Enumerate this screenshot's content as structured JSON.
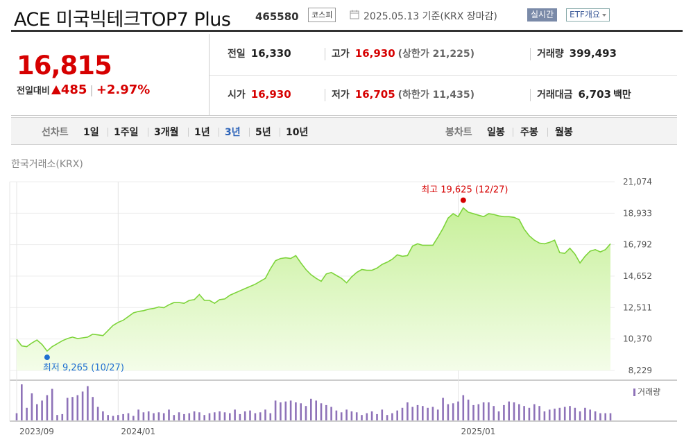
{
  "header": {
    "name": "ACE 미국빅테크TOP7 Plus",
    "code": "465580",
    "market": "코스피",
    "date_text": "2025.05.13 기준(KRX 장마감)",
    "realtime": "실시간",
    "etf_info": "ETF개요"
  },
  "price": {
    "current": "16,815",
    "change_label": "전일대비",
    "change": "485",
    "change_pct": "+2.97%"
  },
  "info": {
    "prev_label": "전일",
    "prev": "16,330",
    "high_label": "고가",
    "high": "16,930",
    "upper_limit": "(상한가 21,225)",
    "volume_label": "거래량",
    "volume": "399,493",
    "open_label": "시가",
    "open": "16,930",
    "low_label": "저가",
    "low": "16,705",
    "lower_limit": "(하한가 11,435)",
    "amount_label": "거래대금",
    "amount": "6,703",
    "amount_unit": "백만"
  },
  "tabs": {
    "line_label": "선차트",
    "line": [
      "1일",
      "1주일",
      "3개월",
      "1년",
      "3년",
      "5년",
      "10년"
    ],
    "active": "3년",
    "candle_label": "봉차트",
    "candle": [
      "일봉",
      "주봉",
      "월봉"
    ]
  },
  "colors": {
    "up": "#d60000",
    "line": "#7dd43a",
    "fill_top": "#c7f09a",
    "fill_bottom": "#f4fde9",
    "volume": "#8e72b8",
    "active_tab": "#2b62b8"
  },
  "chart_data": {
    "type": "area",
    "exchange": "한국거래소(KRX)",
    "yticks": [
      "21,074",
      "18,933",
      "16,792",
      "14,652",
      "12,511",
      "10,370",
      "8,229"
    ],
    "ylim": [
      8229,
      21074
    ],
    "xticks": [
      "2023/09",
      "2024/01",
      "2025/01"
    ],
    "max_annotation": "최고 19,625 (12/27)",
    "min_annotation": "최저 9,265 (10/27)",
    "volume_legend": "거래량",
    "series": [
      {
        "values": [
          10350,
          9900,
          9850,
          10100,
          10300,
          10000,
          9550,
          9850,
          10050,
          10250,
          10400,
          10500,
          10400,
          10450,
          10500,
          10700,
          10650,
          10600,
          10950,
          11300,
          11500,
          11650,
          11900,
          12150,
          12250,
          12300,
          12400,
          12450,
          12550,
          12500,
          12700,
          12850,
          12850,
          12800,
          13000,
          13050,
          13400,
          13000,
          13000,
          12800,
          13050,
          13100,
          13350,
          13500,
          13650,
          13800,
          13950,
          14100,
          14300,
          14500,
          15150,
          15700,
          15850,
          15900,
          15850,
          16050,
          15550,
          15100,
          14750,
          14500,
          14300,
          14800,
          14900,
          14700,
          14500,
          14200,
          14600,
          14900,
          15100,
          15050,
          15050,
          15200,
          15450,
          15600,
          15800,
          16100,
          16000,
          16050,
          16700,
          16850,
          16750,
          16750,
          16750,
          17300,
          17900,
          18600,
          18900,
          18700,
          19300,
          19000,
          18900,
          18800,
          18700,
          18900,
          18850,
          18750,
          18700,
          18700,
          18650,
          18500,
          17850,
          17400,
          17100,
          16900,
          16850,
          16950,
          17100,
          16250,
          16200,
          16550,
          16150,
          15550,
          16000,
          16350,
          16450,
          16300,
          16450,
          16850
        ]
      }
    ],
    "volume_values": [
      8,
      40,
      14,
      30,
      18,
      22,
      28,
      35,
      6,
      7,
      25,
      26,
      28,
      32,
      38,
      26,
      15,
      10,
      6,
      5,
      6,
      7,
      8,
      5,
      12,
      9,
      10,
      8,
      9,
      8,
      12,
      6,
      9,
      7,
      8,
      10,
      9,
      6,
      8,
      9,
      10,
      9,
      8,
      12,
      7,
      10,
      11,
      8,
      9,
      12,
      8,
      22,
      20,
      21,
      22,
      20,
      19,
      16,
      24,
      22,
      19,
      17,
      15,
      11,
      9,
      12,
      10,
      9,
      6,
      8,
      10,
      7,
      12,
      6,
      8,
      11,
      14,
      20,
      15,
      17,
      16,
      14,
      15,
      12,
      25,
      18,
      19,
      21,
      28,
      23,
      17,
      18,
      20,
      20,
      16,
      10,
      17,
      21,
      20,
      18,
      16,
      14,
      18,
      16,
      10,
      12,
      13,
      14,
      15,
      16,
      14,
      10,
      14,
      12,
      10,
      8,
      8,
      8
    ]
  }
}
